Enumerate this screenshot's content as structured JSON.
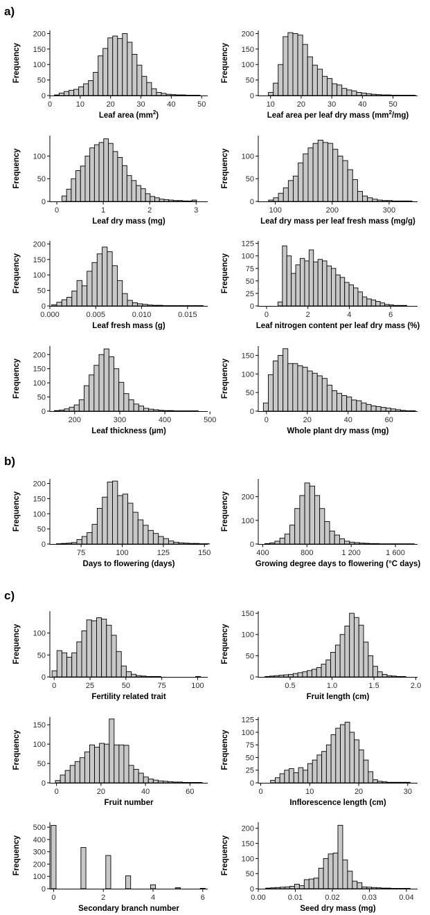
{
  "panel_labels": [
    "a)",
    "b)",
    "c)"
  ],
  "chart_data": [
    {
      "id": "leaf-area",
      "type": "bar",
      "ylabel": "Frequency",
      "xlabel": {
        "pre": "Leaf area (mm",
        "sup": "2",
        "post": ")"
      },
      "xlim": [
        0,
        52
      ],
      "ylim": [
        0,
        210
      ],
      "xticks": [
        0,
        10,
        20,
        30,
        40,
        50
      ],
      "xtick_labels": [
        "0",
        "10",
        "20",
        "30",
        "40",
        "50"
      ],
      "yticks": [
        0,
        50,
        100,
        150,
        200
      ],
      "ytick_labels": [
        "0",
        "50",
        "100",
        "150",
        "200"
      ],
      "bin_start": 1.5,
      "bin_width": 1.6,
      "values": [
        2,
        8,
        13,
        17,
        20,
        28,
        38,
        48,
        75,
        128,
        152,
        186,
        192,
        184,
        200,
        172,
        133,
        98,
        62,
        42,
        22,
        10,
        7,
        4,
        3,
        2,
        2,
        1,
        1,
        1
      ]
    },
    {
      "id": "leaf-area-per-dry-mass",
      "type": "bar",
      "ylabel": "Frequency",
      "xlabel": {
        "pre": "Leaf area per leaf dry mass (mm",
        "sup": "2",
        "post": "/mg)"
      },
      "xlim": [
        6,
        58
      ],
      "ylim": [
        0,
        210
      ],
      "xticks": [
        10,
        20,
        30,
        40,
        50
      ],
      "xtick_labels": [
        "10",
        "20",
        "30",
        "40",
        "50"
      ],
      "yticks": [
        0,
        50,
        100,
        150,
        200
      ],
      "ytick_labels": [
        "0",
        "50",
        "100",
        "150",
        "200"
      ],
      "bin_start": 9.3,
      "bin_width": 1.6,
      "values": [
        10,
        40,
        100,
        190,
        203,
        200,
        195,
        165,
        125,
        98,
        85,
        62,
        55,
        38,
        34,
        23,
        18,
        15,
        10,
        8,
        6,
        4,
        3,
        2,
        2,
        1,
        1,
        1,
        1,
        1
      ]
    },
    {
      "id": "leaf-dry-mass",
      "type": "bar",
      "ylabel": "Frequency",
      "xlabel": "Leaf dry mass (mg)",
      "xlim": [
        -0.15,
        3.25
      ],
      "ylim": [
        0,
        145
      ],
      "xticks": [
        0,
        1,
        2,
        3
      ],
      "xtick_labels": [
        "0",
        "1",
        "2",
        "3"
      ],
      "yticks": [
        0,
        50,
        100
      ],
      "ytick_labels": [
        "0",
        "50",
        "100"
      ],
      "bin_start": 0.01,
      "bin_width": 0.1,
      "values": [
        0,
        12,
        27,
        50,
        68,
        78,
        100,
        118,
        125,
        130,
        138,
        128,
        110,
        97,
        79,
        57,
        46,
        35,
        28,
        17,
        11,
        8,
        5,
        4,
        3,
        2,
        2,
        1,
        1,
        3
      ]
    },
    {
      "id": "leaf-dry-per-fresh-mass",
      "type": "bar",
      "ylabel": "Frequency",
      "xlabel": "Leaf dry mass per leaf fresh mass (mg/g)",
      "xlim": [
        70,
        350
      ],
      "ylim": [
        0,
        145
      ],
      "xticks": [
        100,
        200,
        300
      ],
      "xtick_labels": [
        "100",
        "200",
        "300"
      ],
      "yticks": [
        0,
        50,
        100
      ],
      "ytick_labels": [
        "0",
        "50",
        "100"
      ],
      "bin_start": 88,
      "bin_width": 8.7,
      "values": [
        3,
        8,
        18,
        30,
        46,
        56,
        85,
        105,
        118,
        128,
        135,
        130,
        128,
        115,
        100,
        90,
        70,
        48,
        22,
        12,
        8,
        5,
        3,
        2,
        2,
        1,
        1,
        1,
        1
      ]
    },
    {
      "id": "leaf-fresh-mass",
      "type": "bar",
      "ylabel": "Frequency",
      "xlabel": "Leaf fresh mass (g)",
      "xlim": [
        0,
        0.0172
      ],
      "ylim": [
        0,
        210
      ],
      "xticks": [
        0,
        0.005,
        0.01,
        0.015
      ],
      "xtick_labels": [
        "0.000",
        "0.005",
        "0.010",
        "0.015"
      ],
      "yticks": [
        0,
        50,
        100,
        150,
        200
      ],
      "ytick_labels": [
        "0",
        "50",
        "100",
        "150",
        "200"
      ],
      "bin_start": 0.0002,
      "bin_width": 0.00055,
      "values": [
        4,
        12,
        20,
        28,
        48,
        82,
        65,
        112,
        140,
        168,
        190,
        175,
        130,
        82,
        40,
        18,
        10,
        7,
        5,
        3,
        2,
        2,
        1,
        1,
        1,
        1,
        1,
        1,
        1,
        1
      ]
    },
    {
      "id": "leaf-nitrogen",
      "type": "bar",
      "ylabel": "Frequency",
      "xlabel": "Leaf nitrogen content per leaf dry mass (%)",
      "xlim": [
        -0.4,
        7.3
      ],
      "ylim": [
        0,
        130
      ],
      "xticks": [
        0,
        2,
        4,
        6
      ],
      "xtick_labels": [
        "0",
        "2",
        "4",
        "6"
      ],
      "yticks": [
        0,
        25,
        50,
        75,
        100,
        125
      ],
      "ytick_labels": [
        "0",
        "25",
        "50",
        "75",
        "100",
        "125"
      ],
      "bin_start": 0.55,
      "bin_width": 0.215,
      "values": [
        8,
        120,
        100,
        65,
        82,
        95,
        90,
        112,
        88,
        93,
        90,
        80,
        75,
        62,
        57,
        47,
        42,
        36,
        28,
        18,
        14,
        12,
        9,
        6,
        3,
        2,
        1,
        1,
        1
      ]
    },
    {
      "id": "leaf-thickness",
      "type": "bar",
      "ylabel": "Frequency",
      "xlabel": "Leaf thickness (µm)",
      "xlim": [
        145,
        495
      ],
      "ylim": [
        0,
        230
      ],
      "xticks": [
        200,
        300,
        400,
        500
      ],
      "xtick_labels": [
        "200",
        "300",
        "400",
        "500"
      ],
      "yticks": [
        0,
        50,
        100,
        150,
        200
      ],
      "ytick_labels": [
        "0",
        "50",
        "100",
        "150",
        "200"
      ],
      "bin_start": 155,
      "bin_width": 11,
      "values": [
        2,
        4,
        8,
        14,
        22,
        40,
        90,
        128,
        162,
        200,
        220,
        192,
        150,
        102,
        62,
        40,
        25,
        18,
        10,
        7,
        5,
        3,
        2,
        2,
        1,
        1,
        1,
        1,
        1
      ]
    },
    {
      "id": "whole-plant-dry-mass",
      "type": "bar",
      "ylabel": "Frequency",
      "xlabel": "Whole plant dry mass (mg)",
      "xlim": [
        -4,
        74
      ],
      "ylim": [
        0,
        175
      ],
      "xticks": [
        0,
        20,
        40,
        60
      ],
      "xtick_labels": [
        "0",
        "20",
        "40",
        "60"
      ],
      "yticks": [
        0,
        50,
        100,
        150
      ],
      "ytick_labels": [
        "0",
        "50",
        "100",
        "150"
      ],
      "bin_start": -1.5,
      "bin_width": 2.4,
      "values": [
        22,
        98,
        135,
        150,
        168,
        128,
        128,
        122,
        118,
        108,
        102,
        95,
        88,
        70,
        55,
        48,
        42,
        38,
        30,
        28,
        22,
        18,
        14,
        12,
        10,
        8,
        6,
        4,
        2,
        1,
        1
      ]
    },
    {
      "id": "days-to-flowering",
      "type": "bar",
      "ylabel": "Frequency",
      "xlabel": "Days to flowering (days)",
      "xlim": [
        56,
        152
      ],
      "ylim": [
        0,
        215
      ],
      "xticks": [
        75,
        100,
        125,
        150
      ],
      "xtick_labels": [
        "75",
        "100",
        "125",
        "150"
      ],
      "yticks": [
        0,
        50,
        100,
        150,
        200
      ],
      "ytick_labels": [
        "0",
        "50",
        "100",
        "150",
        "200"
      ],
      "bin_start": 60,
      "bin_width": 3.1,
      "values": [
        1,
        2,
        3,
        5,
        15,
        25,
        38,
        65,
        118,
        155,
        205,
        208,
        160,
        165,
        135,
        105,
        80,
        62,
        45,
        35,
        25,
        18,
        10,
        6,
        4,
        3,
        2,
        2,
        1,
        1
      ]
    },
    {
      "id": "growing-degree-days",
      "type": "bar",
      "ylabel": "Frequency",
      "xlabel": "Growing degree days to flowering (°C days)",
      "xlim": [
        360,
        1800
      ],
      "ylim": [
        0,
        275
      ],
      "xticks": [
        400,
        800,
        1200,
        1600
      ],
      "xtick_labels": [
        "400",
        "800",
        "1 200",
        "1 600"
      ],
      "yticks": [
        0,
        100,
        200
      ],
      "ytick_labels": [
        "0",
        "100",
        "200"
      ],
      "bin_start": 420,
      "bin_width": 45,
      "values": [
        2,
        5,
        12,
        25,
        42,
        80,
        150,
        205,
        258,
        245,
        205,
        150,
        95,
        55,
        38,
        22,
        12,
        8,
        6,
        4,
        3,
        2,
        2,
        1,
        1,
        1,
        1,
        1,
        1,
        1
      ]
    },
    {
      "id": "fertility-trait",
      "type": "bar",
      "ylabel": "Frequency",
      "xlabel": "Fertility related trait",
      "xlim": [
        -3,
        107
      ],
      "ylim": [
        0,
        150
      ],
      "xticks": [
        0,
        25,
        50,
        75,
        100
      ],
      "xtick_labels": [
        "0",
        "25",
        "50",
        "75",
        "100"
      ],
      "yticks": [
        0,
        50,
        100
      ],
      "ytick_labels": [
        "0",
        "50",
        "100"
      ],
      "bin_start": -1.5,
      "bin_width": 3.45,
      "values": [
        14,
        60,
        55,
        45,
        55,
        80,
        105,
        130,
        128,
        135,
        132,
        118,
        95,
        58,
        25,
        12,
        6,
        3,
        2,
        1,
        1,
        1,
        0,
        0,
        0,
        0,
        0,
        0,
        0,
        1
      ]
    },
    {
      "id": "fruit-length",
      "type": "bar",
      "ylabel": "Frequency",
      "xlabel": "Fruit length (cm)",
      "xlim": [
        0.12,
        2.02
      ],
      "ylim": [
        0,
        155
      ],
      "xticks": [
        0.5,
        1.0,
        1.5,
        2.0
      ],
      "xtick_labels": [
        "0.5",
        "1.0",
        "1.5",
        "2.0"
      ],
      "yticks": [
        0,
        50,
        100,
        150
      ],
      "ytick_labels": [
        "0",
        "50",
        "100",
        "150"
      ],
      "bin_start": 0.2,
      "bin_width": 0.056,
      "values": [
        1,
        2,
        3,
        4,
        5,
        6,
        8,
        10,
        12,
        15,
        18,
        22,
        30,
        40,
        58,
        75,
        100,
        120,
        150,
        140,
        122,
        82,
        50,
        25,
        12,
        6,
        3,
        2,
        1,
        1
      ]
    },
    {
      "id": "fruit-number",
      "type": "bar",
      "ylabel": "Frequency",
      "xlabel": "Fruit number",
      "xlim": [
        -3,
        68
      ],
      "ylim": [
        0,
        170
      ],
      "xticks": [
        0,
        20,
        40,
        60
      ],
      "xtick_labels": [
        "0",
        "20",
        "40",
        "60"
      ],
      "yticks": [
        0,
        50,
        100,
        150
      ],
      "ytick_labels": [
        "0",
        "50",
        "100",
        "150"
      ],
      "bin_start": -0.5,
      "bin_width": 2.2,
      "values": [
        6,
        20,
        32,
        45,
        55,
        65,
        80,
        98,
        92,
        102,
        100,
        165,
        98,
        98,
        97,
        45,
        35,
        25,
        15,
        10,
        7,
        5,
        4,
        3,
        2,
        2,
        1,
        1,
        1,
        1
      ]
    },
    {
      "id": "inflorescence-length",
      "type": "bar",
      "ylabel": "Frequency",
      "xlabel": "Inflorescence length (cm)",
      "xlim": [
        -0.5,
        32
      ],
      "ylim": [
        0,
        130
      ],
      "xticks": [
        0,
        10,
        20,
        30
      ],
      "xtick_labels": [
        "0",
        "10",
        "20",
        "30"
      ],
      "yticks": [
        0,
        25,
        50,
        75,
        100,
        125
      ],
      "ytick_labels": [
        "0",
        "25",
        "50",
        "75",
        "100",
        "125"
      ],
      "bin_start": 2,
      "bin_width": 0.95,
      "values": [
        5,
        10,
        18,
        25,
        28,
        20,
        30,
        25,
        38,
        45,
        55,
        62,
        75,
        95,
        108,
        115,
        120,
        100,
        85,
        65,
        45,
        22,
        6,
        3,
        2,
        1,
        1,
        1,
        1,
        1
      ]
    },
    {
      "id": "secondary-branch-number",
      "type": "bar",
      "ylabel": "Frequency",
      "xlabel": "Secondary branch number",
      "xlim": [
        -0.15,
        6.2
      ],
      "ylim": [
        0,
        540
      ],
      "xticks": [
        0,
        2,
        4,
        6
      ],
      "xtick_labels": [
        "0",
        "2",
        "4",
        "6"
      ],
      "yticks": [
        0,
        100,
        200,
        300,
        400,
        500
      ],
      "ytick_labels": [
        "0",
        "100",
        "200",
        "300",
        "400",
        "500"
      ],
      "bin_start": -0.1,
      "bin_width": 0.2,
      "values": [
        515,
        0,
        0,
        0,
        0,
        0,
        335,
        0,
        0,
        0,
        0,
        270,
        0,
        0,
        0,
        105,
        0,
        0,
        0,
        0,
        32,
        0,
        0,
        0,
        0,
        8,
        0,
        0,
        0,
        0,
        3
      ]
    },
    {
      "id": "seed-dry-mass",
      "type": "bar",
      "ylabel": "Frequency",
      "xlabel": "Seed dry mass (mg)",
      "xlim": [
        0,
        0.043
      ],
      "ylim": [
        0,
        220
      ],
      "xticks": [
        0,
        0.01,
        0.02,
        0.03,
        0.04
      ],
      "xtick_labels": [
        "0.00",
        "0.01",
        "0.02",
        "0.03",
        "0.04"
      ],
      "yticks": [
        0,
        50,
        100,
        150,
        200
      ],
      "ytick_labels": [
        "0",
        "50",
        "100",
        "150",
        "200"
      ],
      "bin_start": 0.002,
      "bin_width": 0.0013,
      "values": [
        2,
        3,
        4,
        5,
        6,
        8,
        15,
        10,
        30,
        32,
        35,
        68,
        100,
        115,
        118,
        210,
        95,
        58,
        25,
        20,
        6,
        5,
        4,
        3,
        2,
        2,
        1,
        1,
        1,
        1
      ]
    }
  ]
}
